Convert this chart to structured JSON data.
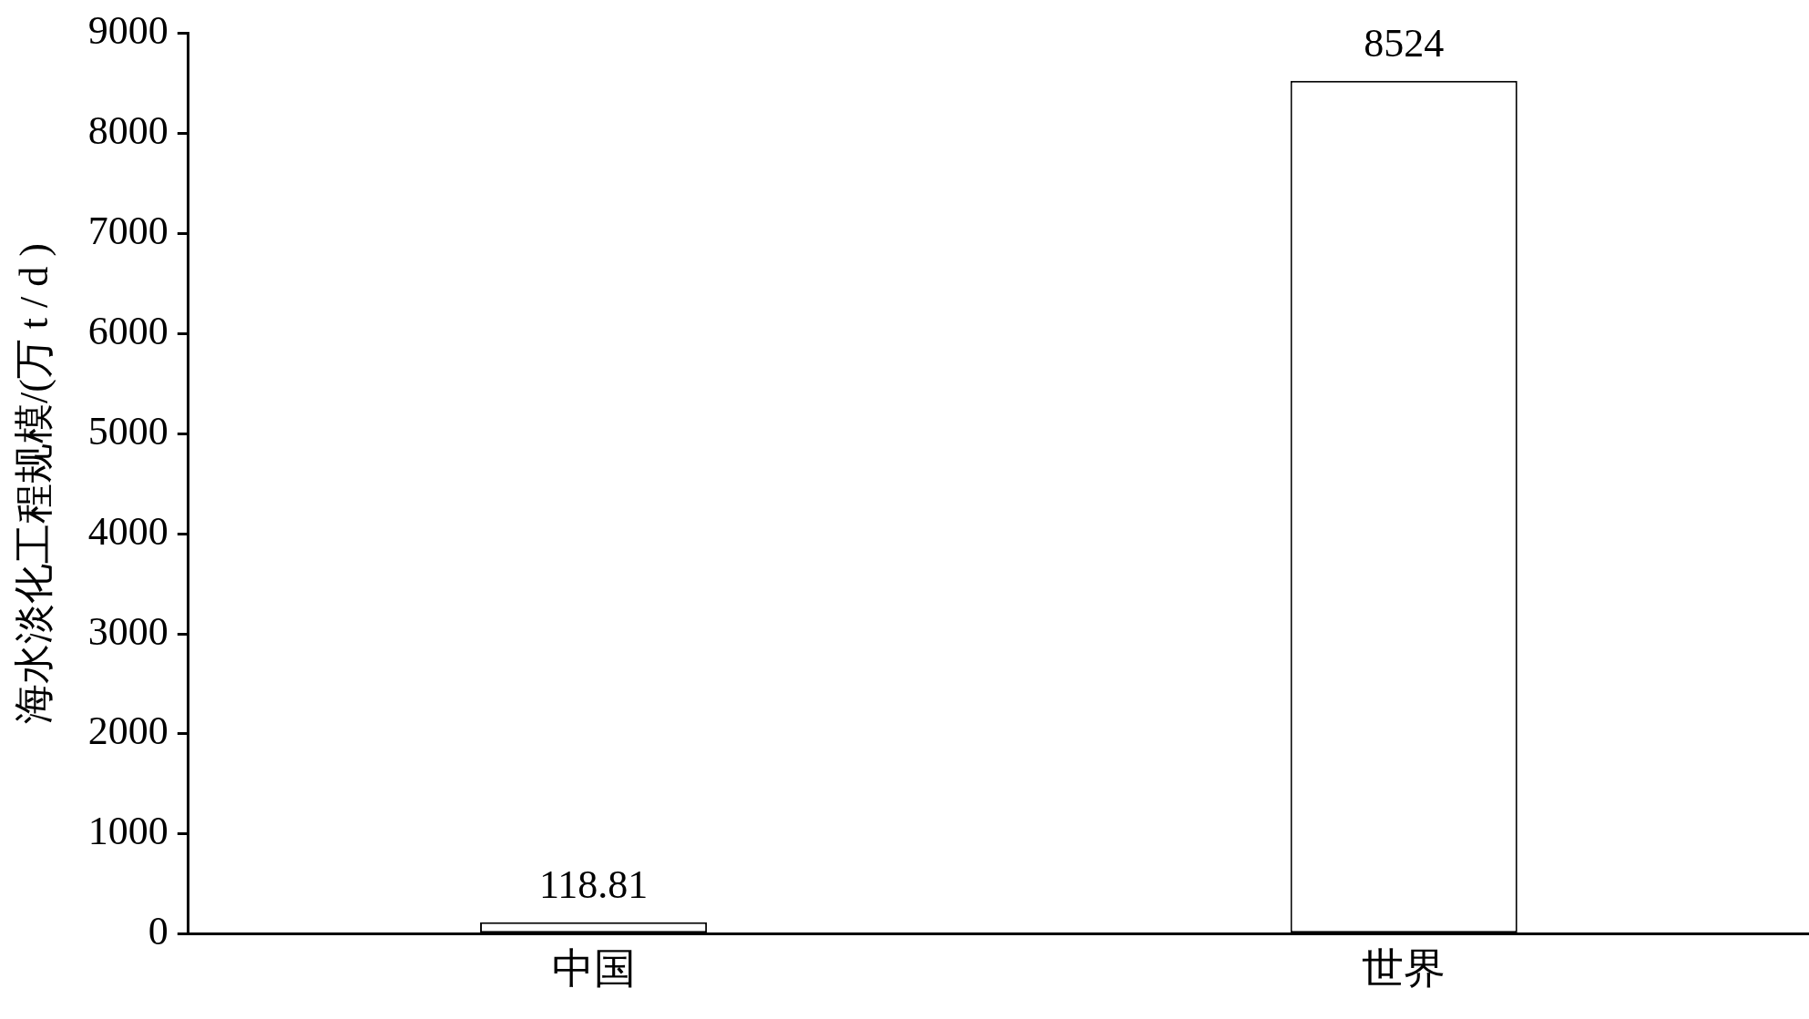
{
  "chart_data": {
    "type": "bar",
    "ylabel": "海水淡化工程规模/(万 t / d )",
    "categories": [
      "中国",
      "世界"
    ],
    "values": [
      118.81,
      8524
    ],
    "color": "#ffffff",
    "ylim": [
      0,
      9000
    ],
    "yticks": [
      0,
      1000,
      2000,
      3000,
      4000,
      5000,
      6000,
      7000,
      8000,
      9000
    ],
    "grid": false,
    "legend": false,
    "data_labels": true
  }
}
